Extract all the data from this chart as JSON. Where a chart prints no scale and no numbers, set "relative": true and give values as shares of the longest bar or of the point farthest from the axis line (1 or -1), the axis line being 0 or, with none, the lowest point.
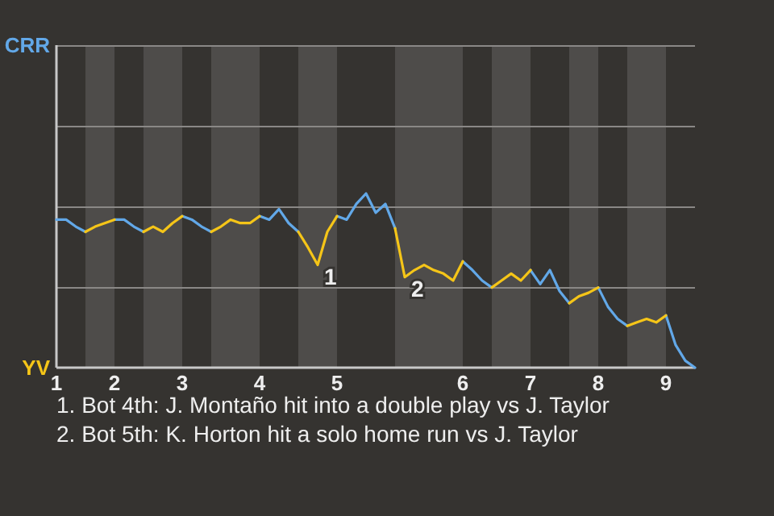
{
  "chart_data": {
    "type": "line",
    "relative": true,
    "categories": [
      "1",
      null,
      null,
      null,
      null,
      null,
      "2",
      null,
      null,
      null,
      null,
      null,
      null,
      "3",
      null,
      null,
      null,
      null,
      null,
      null,
      null,
      "4",
      null,
      null,
      null,
      null,
      null,
      null,
      null,
      "5",
      null,
      null,
      null,
      null,
      null,
      null,
      null,
      null,
      null,
      null,
      null,
      null,
      "6",
      null,
      null,
      null,
      null,
      null,
      null,
      "7",
      null,
      null,
      null,
      null,
      null,
      null,
      "8",
      null,
      null,
      null,
      null,
      null,
      null,
      "9",
      null,
      null,
      null
    ],
    "series": [
      {
        "name": "CRR",
        "color": "#62a8e8",
        "values": [
          0.85,
          0.85,
          0.81,
          0.78,
          null,
          null,
          0.85,
          0.85,
          0.81,
          0.78,
          null,
          null,
          null,
          0.87,
          0.85,
          0.81,
          0.78,
          null,
          null,
          null,
          null,
          0.87,
          0.85,
          0.91,
          0.83,
          0.78,
          null,
          null,
          null,
          0.87,
          0.85,
          0.94,
          1,
          0.89,
          0.94,
          0.8,
          null,
          null,
          null,
          null,
          null,
          null,
          0.61,
          0.56,
          0.5,
          0.46,
          null,
          null,
          null,
          0.56,
          0.48,
          0.56,
          0.44,
          0.37,
          null,
          null,
          0.46,
          0.35,
          0.28,
          0.24,
          null,
          null,
          null,
          0.3,
          0.13,
          0.04,
          0
        ]
      },
      {
        "name": "YV",
        "color": "#f5c518",
        "values": [
          null,
          null,
          null,
          0.78,
          0.81,
          0.83,
          0.85,
          null,
          null,
          0.78,
          0.81,
          0.78,
          0.83,
          0.87,
          null,
          null,
          0.78,
          0.81,
          0.85,
          0.83,
          0.83,
          0.87,
          null,
          null,
          null,
          0.78,
          0.69,
          0.59,
          0.78,
          0.87,
          null,
          null,
          null,
          null,
          null,
          0.8,
          0.52,
          0.56,
          0.59,
          0.56,
          0.54,
          0.5,
          0.61,
          null,
          null,
          0.46,
          0.5,
          0.54,
          0.5,
          0.56,
          null,
          null,
          null,
          0.37,
          0.41,
          0.43,
          0.46,
          null,
          null,
          0.24,
          0.26,
          0.28,
          0.26,
          0.3,
          null,
          null,
          null
        ]
      }
    ],
    "legend": "left",
    "annotations": [
      "1",
      "2",
      "1. Bot 4th: J. Montaño hit into a double play vs J. Taylor",
      "2. Bot 5th: K. Horton hit a solo home run vs J. Taylor"
    ]
  }
}
